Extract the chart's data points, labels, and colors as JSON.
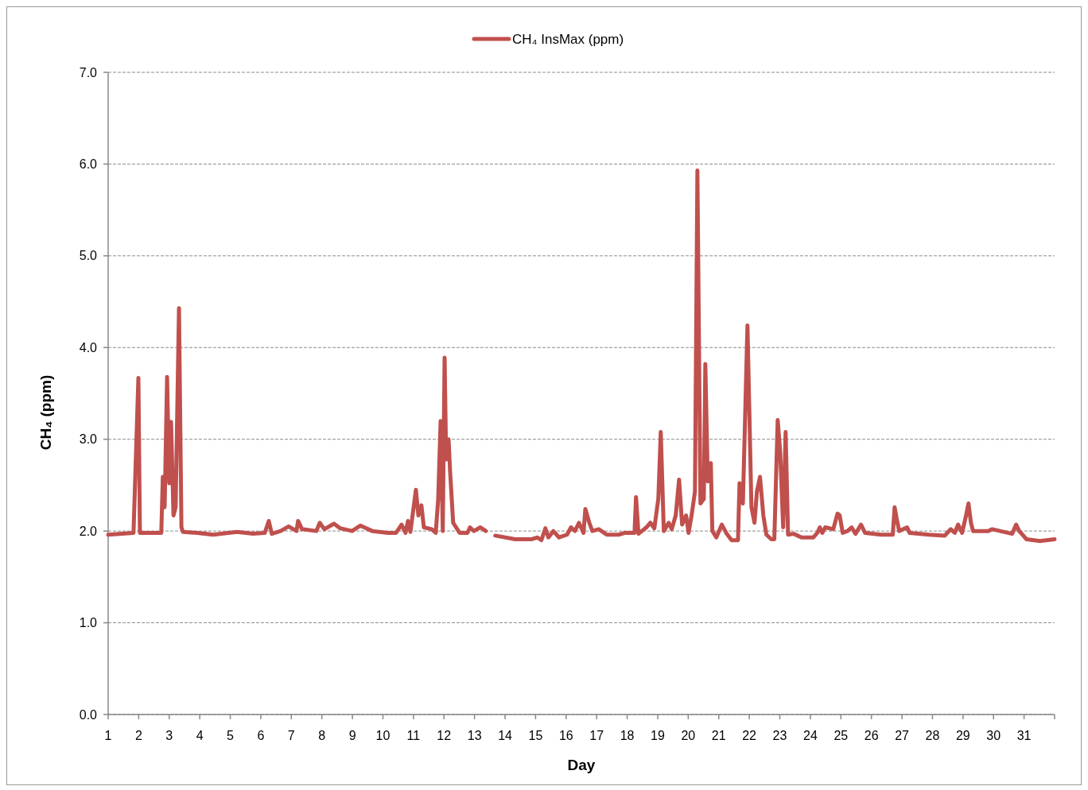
{
  "chart_data": {
    "type": "line",
    "xlabel": "Day",
    "ylabel": "CH₄ (ppm)",
    "xlim": [
      1,
      32
    ],
    "xticks": [
      1,
      2,
      3,
      4,
      5,
      6,
      7,
      8,
      9,
      10,
      11,
      12,
      13,
      14,
      15,
      16,
      17,
      18,
      19,
      20,
      21,
      22,
      23,
      24,
      25,
      26,
      27,
      28,
      29,
      30,
      31,
      {
        "value": 32,
        "label": null
      }
    ],
    "ylim": [
      0,
      7
    ],
    "yticks": [
      {
        "value": 0,
        "label": "0.0"
      },
      {
        "value": 1,
        "label": "1.0"
      },
      {
        "value": 2,
        "label": "2.0"
      },
      {
        "value": 3,
        "label": "3.0"
      },
      {
        "value": 4,
        "label": "4.0"
      },
      {
        "value": 5,
        "label": "5.0"
      },
      {
        "value": 6,
        "label": "6.0"
      },
      {
        "value": 7,
        "label": "7.0"
      }
    ],
    "grid": "y",
    "legend": "top",
    "marker": "none",
    "line_style": "solid",
    "series": [
      {
        "name": "CH₄ InsMax (ppm)",
        "color": "#c0504d",
        "x": [
          1.0,
          1.83,
          1.99,
          2.04,
          2.74,
          2.79,
          2.85,
          2.93,
          3.0,
          3.06,
          3.14,
          3.21,
          3.32,
          3.4,
          3.45,
          3.92,
          4.44,
          5.22,
          5.74,
          6.13,
          6.26,
          6.36,
          6.65,
          6.91,
          7.17,
          7.22,
          7.35,
          7.82,
          7.93,
          8.08,
          8.29,
          8.4,
          8.6,
          8.99,
          9.26,
          9.65,
          10.17,
          10.43,
          10.61,
          10.74,
          10.82,
          10.9,
          11.08,
          11.16,
          11.26,
          11.34,
          11.6,
          11.73,
          11.81,
          11.89,
          11.96,
          12.02,
          12.07,
          12.15,
          12.2,
          12.3,
          12.51,
          12.77,
          12.85,
          12.98,
          13.19,
          13.37,
          13.52,
          13.68,
          14.33,
          14.85,
          15.06,
          15.19,
          15.32,
          15.42,
          15.58,
          15.77,
          16.03,
          16.16,
          16.29,
          16.42,
          16.57,
          16.63,
          16.76,
          16.86,
          17.07,
          17.33,
          17.72,
          17.93,
          18.24,
          18.29,
          18.37,
          18.63,
          18.76,
          18.89,
          19.02,
          19.1,
          19.2,
          19.36,
          19.46,
          19.59,
          19.7,
          19.8,
          19.93,
          20.01,
          20.11,
          20.22,
          20.3,
          20.4,
          20.51,
          20.56,
          20.64,
          20.74,
          20.79,
          20.92,
          21.1,
          21.26,
          21.42,
          21.63,
          21.68,
          21.79,
          21.94,
          22.07,
          22.17,
          22.25,
          22.35,
          22.46,
          22.56,
          22.72,
          22.82,
          22.93,
          23.01,
          23.11,
          23.19,
          23.27,
          23.45,
          23.71,
          24.1,
          24.23,
          24.31,
          24.39,
          24.49,
          24.75,
          24.89,
          24.96,
          25.06,
          25.22,
          25.35,
          25.48,
          25.66,
          25.79,
          26.31,
          26.7,
          26.76,
          26.83,
          26.91,
          27.17,
          27.25,
          27.88,
          28.4,
          28.6,
          28.73,
          28.84,
          28.97,
          29.1,
          29.18,
          29.26,
          29.33,
          29.83,
          29.96,
          30.61,
          30.74,
          30.84,
          31.08,
          31.52,
          32.0
        ],
        "values": [
          1.96,
          1.98,
          3.67,
          1.98,
          1.98,
          2.59,
          2.26,
          3.68,
          2.52,
          3.19,
          2.17,
          2.26,
          4.43,
          2.04,
          1.99,
          1.98,
          1.96,
          1.99,
          1.97,
          1.98,
          2.11,
          1.97,
          2.0,
          2.05,
          2.0,
          2.11,
          2.02,
          2.0,
          2.09,
          2.02,
          2.06,
          2.08,
          2.03,
          2.0,
          2.06,
          2.0,
          1.98,
          1.98,
          2.07,
          1.98,
          2.11,
          1.99,
          2.45,
          2.17,
          2.28,
          2.04,
          2.02,
          1.98,
          2.35,
          3.2,
          2.0,
          3.89,
          2.78,
          3.0,
          2.65,
          2.09,
          1.98,
          1.98,
          2.04,
          2.0,
          2.04,
          2.0,
          null,
          1.95,
          1.91,
          1.91,
          1.93,
          1.9,
          2.03,
          1.93,
          2.0,
          1.93,
          1.96,
          2.04,
          2.0,
          2.09,
          1.98,
          2.24,
          2.09,
          2.0,
          2.02,
          1.96,
          1.96,
          1.98,
          1.98,
          2.37,
          1.97,
          2.04,
          2.09,
          2.03,
          2.35,
          3.08,
          2.0,
          2.09,
          2.02,
          2.17,
          2.56,
          2.07,
          2.17,
          1.98,
          2.17,
          2.43,
          5.93,
          2.3,
          2.35,
          3.82,
          2.54,
          2.74,
          2.0,
          1.93,
          2.07,
          1.97,
          1.9,
          1.9,
          2.52,
          2.3,
          4.24,
          2.26,
          2.09,
          2.43,
          2.59,
          2.17,
          1.96,
          1.91,
          1.91,
          3.21,
          2.87,
          2.04,
          3.08,
          1.96,
          1.97,
          1.93,
          1.93,
          1.98,
          2.04,
          1.98,
          2.04,
          2.02,
          2.19,
          2.17,
          1.98,
          2.0,
          2.04,
          1.97,
          2.07,
          1.98,
          1.96,
          1.96,
          2.26,
          2.13,
          2.0,
          2.04,
          1.98,
          1.96,
          1.95,
          2.02,
          1.98,
          2.07,
          1.98,
          2.17,
          2.3,
          2.09,
          2.0,
          2.0,
          2.02,
          1.97,
          2.07,
          2.0,
          1.91,
          1.89,
          1.91
        ]
      }
    ]
  }
}
